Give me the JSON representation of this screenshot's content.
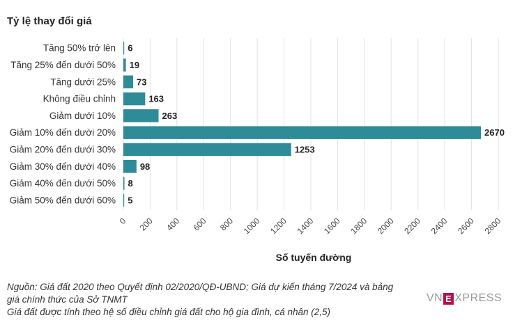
{
  "chart_data": {
    "type": "bar",
    "orientation": "horizontal",
    "title": "Tỷ lệ thay đổi giá",
    "xlabel": "Số tuyến đường",
    "categories": [
      "Tăng 50% trở lên",
      "Tăng 25% đến dưới 50%",
      "Tăng dưới 25%",
      "Không điều chỉnh",
      "Giảm dưới 10%",
      "Giảm 10% đến dưới 20%",
      "Giảm 20% đến dưới 30%",
      "Giảm 30% đến dưới 40%",
      "Giảm 40% đến dưới 50%",
      "Giảm 50% đến dưới 60%"
    ],
    "values": [
      6,
      19,
      73,
      163,
      263,
      2670,
      1253,
      98,
      8,
      5
    ],
    "xlim": [
      0,
      2800
    ],
    "xticks": [
      0,
      200,
      400,
      600,
      800,
      1000,
      1200,
      1400,
      1600,
      1800,
      2000,
      2200,
      2400,
      2600,
      2800
    ],
    "bar_color": "#2e8b98",
    "grid": true
  },
  "footer": {
    "source_line1": "Nguồn: Giá đất 2020 theo Quyết định 02/2020/QĐ-UBND; Giá dự kiến tháng 7/2024 và bảng",
    "source_line2": "giá chính thức của Sở TNMT",
    "note": "Giá đất được tính theo hệ số điều chỉnh giá đất cho hộ gia đình, cá nhân (2,5)"
  },
  "logo": {
    "left": "VN",
    "mark": "E",
    "right": "XPRESS"
  }
}
